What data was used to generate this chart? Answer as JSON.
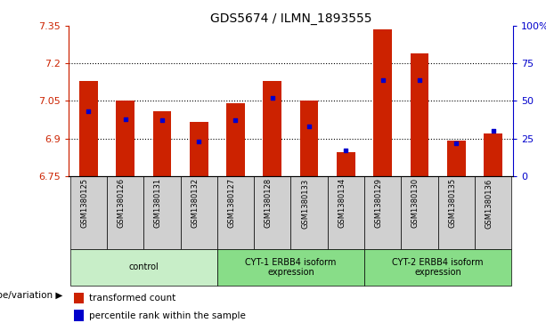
{
  "title": "GDS5674 / ILMN_1893555",
  "samples": [
    "GSM1380125",
    "GSM1380126",
    "GSM1380131",
    "GSM1380132",
    "GSM1380127",
    "GSM1380128",
    "GSM1380133",
    "GSM1380134",
    "GSM1380129",
    "GSM1380130",
    "GSM1380135",
    "GSM1380136"
  ],
  "red_values": [
    7.13,
    7.05,
    7.01,
    6.965,
    7.04,
    7.13,
    7.05,
    6.845,
    7.335,
    7.24,
    6.89,
    6.92
  ],
  "blue_values": [
    43,
    38,
    37,
    23,
    37,
    52,
    33,
    17,
    64,
    64,
    22,
    30
  ],
  "y_min": 6.75,
  "y_max": 7.35,
  "y_ticks_left": [
    6.75,
    6.9,
    7.05,
    7.2,
    7.35
  ],
  "y_ticks_right": [
    0,
    25,
    50,
    75,
    100
  ],
  "bar_color": "#cc2200",
  "dot_color": "#0000cc",
  "bar_width": 0.5,
  "legend_labels": [
    "transformed count",
    "percentile rank within the sample"
  ],
  "genotype_label": "genotype/variation",
  "left_tick_color": "#cc2200",
  "right_tick_color": "#0000cc",
  "sample_bg_color": "#d0d0d0",
  "group_control_color": "#c8eec8",
  "group_cyt1_color": "#88dd88",
  "group_cyt2_color": "#88dd88",
  "groups": [
    {
      "start": 0,
      "end": 3,
      "label": "control",
      "color": "#c8eec8"
    },
    {
      "start": 4,
      "end": 7,
      "label": "CYT-1 ERBB4 isoform\nexpression",
      "color": "#88dd88"
    },
    {
      "start": 8,
      "end": 11,
      "label": "CYT-2 ERBB4 isoform\nexpression",
      "color": "#88dd88"
    }
  ]
}
